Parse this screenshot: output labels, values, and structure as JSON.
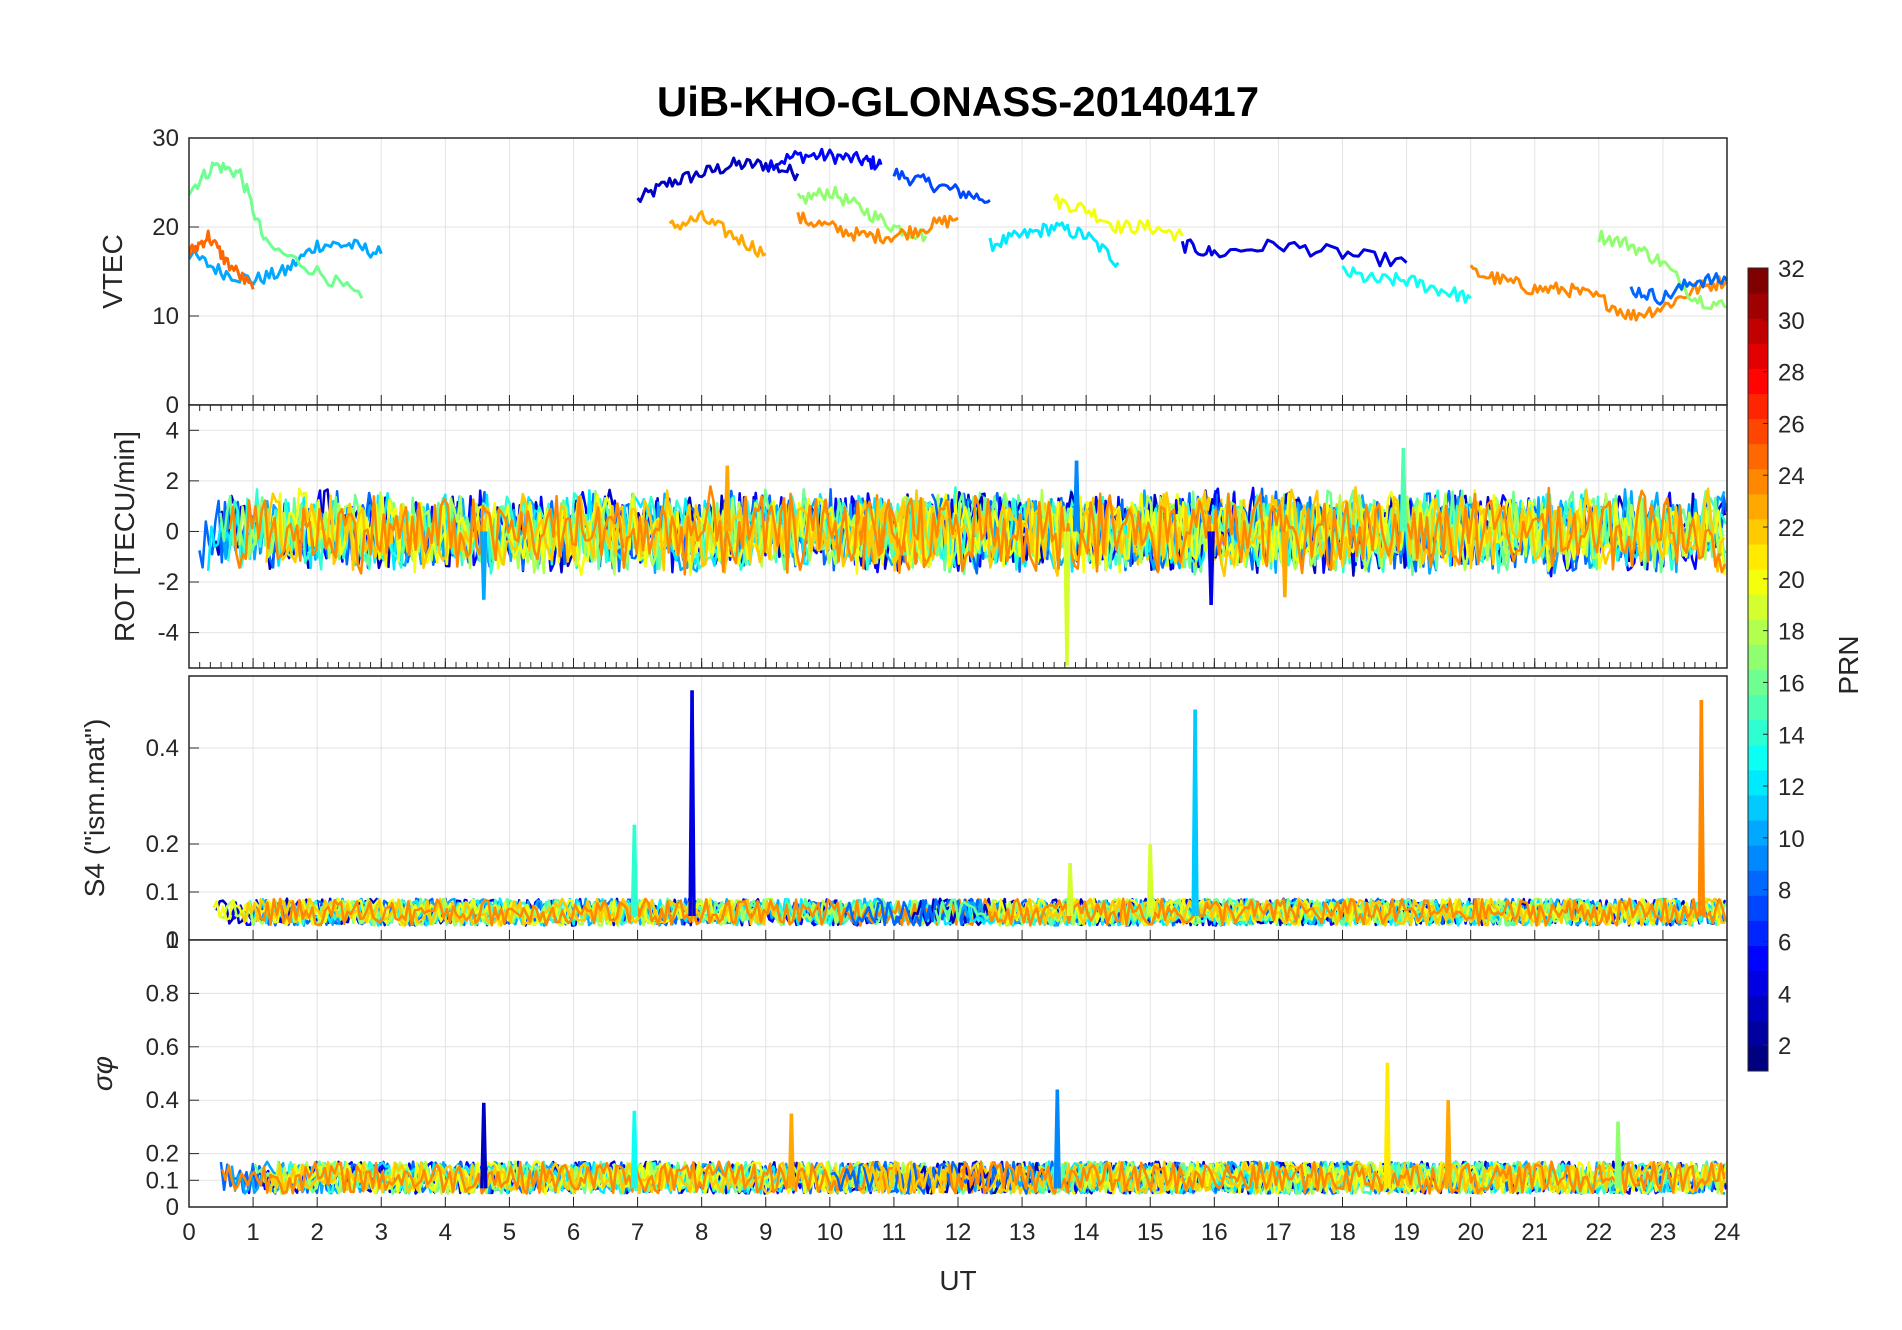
{
  "title": "UiB-KHO-GLONASS-20140417",
  "xlabel": "UT",
  "x_ticks": [
    "0",
    "1",
    "2",
    "3",
    "4",
    "5",
    "6",
    "7",
    "8",
    "9",
    "10",
    "11",
    "12",
    "13",
    "14",
    "15",
    "16",
    "17",
    "18",
    "19",
    "20",
    "21",
    "22",
    "23",
    "24"
  ],
  "colorbar": {
    "label": "PRN",
    "ticks": [
      "2",
      "4",
      "6",
      "8",
      "10",
      "12",
      "14",
      "16",
      "18",
      "20",
      "22",
      "24",
      "26",
      "28",
      "30",
      "32"
    ],
    "range": [
      1,
      32
    ],
    "colormap": "jet"
  },
  "chart_data": [
    {
      "type": "line",
      "ylabel": "VTEC",
      "xlim": [
        0,
        24
      ],
      "ylim": [
        0,
        30
      ],
      "y_ticks": [
        "0",
        "10",
        "20",
        "30"
      ],
      "y_tick_values": [
        0,
        10,
        20,
        30
      ],
      "grid": true,
      "series": [
        {
          "prn": 3,
          "x": [
            7.0,
            7.5,
            8.0,
            8.5,
            9.0,
            9.5
          ],
          "y": [
            23,
            25,
            26,
            27,
            27,
            26
          ]
        },
        {
          "prn": 5,
          "x": [
            9.0,
            9.5,
            10.0,
            10.5,
            10.8
          ],
          "y": [
            27,
            28,
            28,
            27.5,
            27
          ]
        },
        {
          "prn": 7,
          "x": [
            11.0,
            11.5,
            12.0,
            12.5
          ],
          "y": [
            26,
            25,
            24,
            23
          ]
        },
        {
          "prn": 10,
          "x": [
            0.0,
            0.5,
            1.0,
            1.5,
            2.0,
            2.5,
            3.0
          ],
          "y": [
            17,
            15,
            14,
            15,
            18,
            18,
            17
          ]
        },
        {
          "prn": 12,
          "x": [
            12.5,
            13.0,
            13.5,
            14.0,
            14.5
          ],
          "y": [
            18,
            19,
            20,
            19,
            16
          ]
        },
        {
          "prn": 16,
          "x": [
            0.0,
            0.4,
            0.8,
            1.2,
            2.0,
            2.7
          ],
          "y": [
            24,
            27,
            26,
            18,
            15,
            12
          ]
        },
        {
          "prn": 17,
          "x": [
            9.5,
            10.0,
            10.5,
            11.0,
            11.5
          ],
          "y": [
            23,
            24,
            22,
            20,
            19
          ]
        },
        {
          "prn": 20,
          "x": [
            13.5,
            14.0,
            14.5,
            15.0,
            15.5
          ],
          "y": [
            23,
            22,
            20,
            20,
            19
          ]
        },
        {
          "prn": 23,
          "x": [
            7.5,
            8.0,
            8.5,
            9.0
          ],
          "y": [
            20,
            21,
            19,
            17
          ]
        },
        {
          "prn": 24,
          "x": [
            9.5,
            10.0,
            10.5,
            11.0,
            11.5,
            12.0
          ],
          "y": [
            21,
            20,
            19,
            19,
            20,
            21
          ]
        },
        {
          "prn": 25,
          "x": [
            0.0,
            0.3,
            0.6,
            1.0
          ],
          "y": [
            17,
            19,
            16,
            13
          ]
        },
        {
          "prn": 4,
          "x": [
            15.5,
            16.0,
            17.0,
            18.0,
            19.0
          ],
          "y": [
            18,
            17,
            18,
            17,
            16
          ]
        },
        {
          "prn": 13,
          "x": [
            18.0,
            18.5,
            19.0,
            19.5,
            20.0
          ],
          "y": [
            15,
            14,
            14,
            13,
            12
          ]
        },
        {
          "prn": 24,
          "x": [
            20.0,
            20.5,
            21.0,
            21.5,
            22.0,
            22.5,
            23.0,
            23.5,
            24.0
          ],
          "y": [
            15,
            14,
            13,
            13,
            12,
            10,
            11,
            13,
            14
          ]
        },
        {
          "prn": 17,
          "x": [
            22.0,
            22.5,
            23.0,
            23.5,
            24.0
          ],
          "y": [
            19,
            18,
            16,
            12,
            11
          ]
        },
        {
          "prn": 8,
          "x": [
            22.5,
            23.0,
            23.5,
            24.0
          ],
          "y": [
            13,
            12,
            14,
            14
          ]
        }
      ]
    },
    {
      "type": "line",
      "ylabel": "ROT [TECU/min]",
      "xlim": [
        0,
        24
      ],
      "ylim": [
        -5.4,
        5
      ],
      "y_ticks": [
        "-4",
        "-2",
        "0",
        "2",
        "4"
      ],
      "y_tick_values": [
        -4,
        -2,
        0,
        2,
        4
      ],
      "grid": true,
      "typical_band": [
        -1.5,
        1.5
      ],
      "spikes": [
        {
          "prn": 19,
          "x": 13.7,
          "y": -5.3
        },
        {
          "prn": 9,
          "x": 13.85,
          "y": 2.8
        },
        {
          "prn": 15,
          "x": 18.95,
          "y": 3.3
        },
        {
          "prn": 10,
          "x": 4.6,
          "y": -2.7
        },
        {
          "prn": 4,
          "x": 15.95,
          "y": -2.9
        },
        {
          "prn": 23,
          "x": 8.4,
          "y": 2.6
        },
        {
          "prn": 23,
          "x": 17.1,
          "y": -2.6
        }
      ]
    },
    {
      "type": "line",
      "ylabel": "S4 (\"ism.mat\")",
      "xlim": [
        0,
        24
      ],
      "ylim": [
        0,
        0.55
      ],
      "y_ticks": [
        "0",
        "0.1",
        "0.2",
        "0.4"
      ],
      "y_tick_values": [
        0,
        0.1,
        0.2,
        0.4
      ],
      "grid": true,
      "typical_band": [
        0.03,
        0.1
      ],
      "spikes": [
        {
          "prn": 4,
          "x": 7.85,
          "y": 0.52
        },
        {
          "prn": 11,
          "x": 15.7,
          "y": 0.48
        },
        {
          "prn": 24,
          "x": 23.6,
          "y": 0.5
        },
        {
          "prn": 14,
          "x": 6.95,
          "y": 0.24
        },
        {
          "prn": 19,
          "x": 15.0,
          "y": 0.2
        },
        {
          "prn": 19,
          "x": 13.75,
          "y": 0.16
        }
      ]
    },
    {
      "type": "line",
      "ylabel": "σφ",
      "xlim": [
        0,
        24
      ],
      "ylim": [
        0,
        1
      ],
      "y_ticks": [
        "0",
        "0.1",
        "0.2",
        "0.4",
        "0.6",
        "0.8",
        "1"
      ],
      "y_tick_values": [
        0,
        0.1,
        0.2,
        0.4,
        0.6,
        0.8,
        1
      ],
      "grid": true,
      "typical_band": [
        0.05,
        0.2
      ],
      "spikes": [
        {
          "prn": 21,
          "x": 18.7,
          "y": 0.54
        },
        {
          "prn": 9,
          "x": 13.55,
          "y": 0.44
        },
        {
          "prn": 23,
          "x": 19.65,
          "y": 0.4
        },
        {
          "prn": 3,
          "x": 4.6,
          "y": 0.39
        },
        {
          "prn": 23,
          "x": 9.4,
          "y": 0.35
        },
        {
          "prn": 13,
          "x": 6.95,
          "y": 0.36
        },
        {
          "prn": 17,
          "x": 22.3,
          "y": 0.32
        }
      ]
    }
  ]
}
